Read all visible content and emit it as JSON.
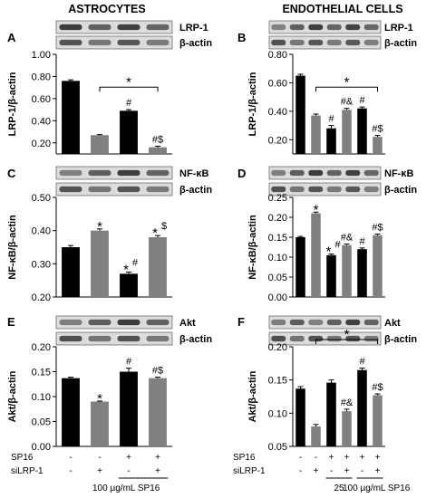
{
  "columns": [
    {
      "title": "ASTROCYTES"
    },
    {
      "title": "ENDOTHELIAL CELLS"
    }
  ],
  "chart_data": [
    {
      "type": "bar",
      "panel": "A",
      "column": 0,
      "row": 0,
      "ylabel": "LRP-1/β-actin",
      "ylim": [
        0.1,
        1.0
      ],
      "yticks": [
        "0.20",
        "0.40",
        "0.60",
        "0.80",
        "1.00"
      ],
      "blots": [
        "LRP-1",
        "β-actin"
      ],
      "categories": [
        "1",
        "2",
        "3",
        "4"
      ],
      "values": [
        0.76,
        0.27,
        0.49,
        0.16
      ],
      "errors": [
        0.01,
        0.005,
        0.01,
        0.01
      ],
      "colors": [
        "#000000",
        "#808080",
        "#000000",
        "#808080"
      ],
      "marks": [
        "",
        "",
        "#",
        "#$"
      ],
      "bracket": {
        "from": 1,
        "to": 3,
        "label": "*"
      }
    },
    {
      "type": "bar",
      "panel": "B",
      "column": 1,
      "row": 0,
      "ylabel": "LRP-1/β-actin",
      "ylim": [
        0.1,
        0.8
      ],
      "yticks": [
        "0.20",
        "0.40",
        "0.60",
        "0.80"
      ],
      "blots": [
        "LRP-1",
        "β-actin"
      ],
      "categories": [
        "1",
        "2",
        "3",
        "4",
        "5",
        "6"
      ],
      "values": [
        0.65,
        0.37,
        0.28,
        0.41,
        0.42,
        0.22
      ],
      "errors": [
        0.01,
        0.01,
        0.02,
        0.01,
        0.01,
        0.01
      ],
      "colors": [
        "#000000",
        "#808080",
        "#000000",
        "#808080",
        "#000000",
        "#808080"
      ],
      "marks": [
        "",
        "",
        "#",
        "#&",
        "#",
        "#$"
      ],
      "bracket": {
        "from": 1,
        "to": 5,
        "label": "*"
      }
    },
    {
      "type": "bar",
      "panel": "C",
      "column": 0,
      "row": 1,
      "ylabel": "NF-κB/β-actin",
      "ylim": [
        0.2,
        0.5
      ],
      "yticks": [
        "0.20",
        "0.30",
        "0.40",
        "0.50"
      ],
      "blots": [
        "NF-κB",
        "β-actin"
      ],
      "categories": [
        "1",
        "2",
        "3",
        "4"
      ],
      "values": [
        0.35,
        0.4,
        0.27,
        0.38
      ],
      "errors": [
        0.005,
        0.005,
        0.005,
        0.005
      ],
      "colors": [
        "#000000",
        "#808080",
        "#000000",
        "#808080"
      ],
      "marks": [
        "",
        "*",
        "*#",
        "*$"
      ]
    },
    {
      "type": "bar",
      "panel": "D",
      "column": 1,
      "row": 1,
      "ylabel": "NF-κB/β-actin",
      "ylim": [
        0.0,
        0.25
      ],
      "yticks": [
        "0.00",
        "0.05",
        "0.10",
        "0.15",
        "0.20",
        "0.25"
      ],
      "blots": [
        "NF-κB",
        "β-actin"
      ],
      "categories": [
        "1",
        "2",
        "3",
        "4",
        "5",
        "6"
      ],
      "values": [
        0.15,
        0.21,
        0.105,
        0.13,
        0.12,
        0.155
      ],
      "errors": [
        0.002,
        0.003,
        0.003,
        0.003,
        0.003,
        0.003
      ],
      "colors": [
        "#000000",
        "#808080",
        "#000000",
        "#808080",
        "#000000",
        "#808080"
      ],
      "marks": [
        "",
        "*",
        "*#",
        "#&",
        "#",
        "#$"
      ]
    },
    {
      "type": "bar",
      "panel": "E",
      "column": 0,
      "row": 2,
      "ylabel": "Akt/β-actin",
      "ylim": [
        0.0,
        0.2
      ],
      "yticks": [
        "0.00",
        "0.05",
        "0.10",
        "0.15",
        "0.20"
      ],
      "blots": [
        "Akt",
        "β-actin"
      ],
      "categories": [
        "1",
        "2",
        "3",
        "4"
      ],
      "values": [
        0.137,
        0.09,
        0.15,
        0.137
      ],
      "errors": [
        0.002,
        0.001,
        0.007,
        0.002
      ],
      "colors": [
        "#000000",
        "#808080",
        "#000000",
        "#808080"
      ],
      "marks": [
        "",
        "*",
        "#",
        "#$"
      ]
    },
    {
      "type": "bar",
      "panel": "F",
      "column": 1,
      "row": 2,
      "ylabel": "Akt/β-actin",
      "ylim": [
        0.05,
        0.2
      ],
      "yticks": [
        "0.05",
        "0.10",
        "0.15",
        "0.20"
      ],
      "blots": [
        "Akt",
        "β-actin"
      ],
      "categories": [
        "1",
        "2",
        "3",
        "4",
        "5",
        "6"
      ],
      "values": [
        0.137,
        0.08,
        0.146,
        0.103,
        0.165,
        0.127
      ],
      "errors": [
        0.003,
        0.003,
        0.004,
        0.003,
        0.003,
        0.002
      ],
      "colors": [
        "#000000",
        "#808080",
        "#000000",
        "#808080",
        "#000000",
        "#808080"
      ],
      "marks": [
        "",
        "",
        "",
        "#&",
        "#",
        "#$"
      ],
      "bracket": {
        "from": 1,
        "to": 5,
        "label": "*"
      }
    }
  ],
  "conditions": {
    "row_labels": [
      "SP16",
      "siLRP-1"
    ],
    "left": {
      "sp16": [
        "-",
        "-",
        "+",
        "+"
      ],
      "silrp1": [
        "-",
        "+",
        "-",
        "+"
      ],
      "dose_label": "100 µg/mL SP16"
    },
    "right": {
      "sp16": [
        "-",
        "-",
        "+",
        "+",
        "+",
        "+"
      ],
      "silrp1": [
        "-",
        "+",
        "-",
        "+",
        "-",
        "+"
      ],
      "dose_low": "25",
      "dose_high": "100 µg/mL SP16"
    }
  }
}
